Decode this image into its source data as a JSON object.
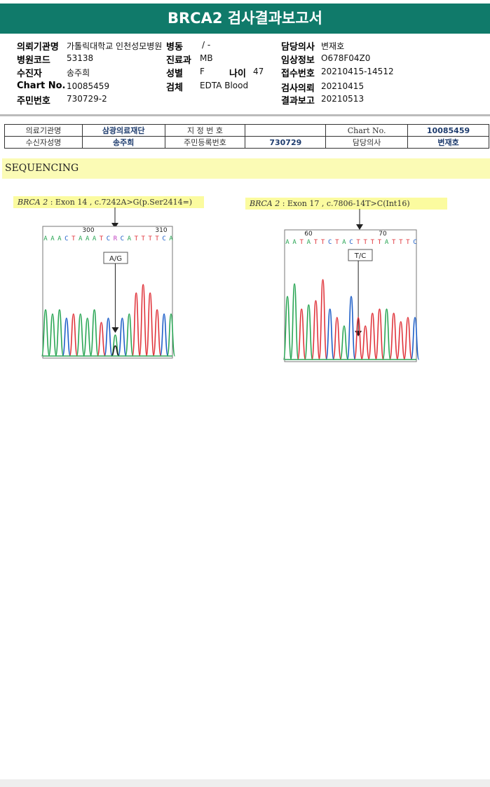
{
  "title": "BRCA2 검사결과보고서",
  "info": {
    "rows": [
      [
        {
          "k": "의뢰기관명",
          "v": "가톨릭대학교 인천성모병원"
        },
        {
          "k": "병동",
          "v": "/ -"
        },
        {
          "k": "담당의사",
          "v": "변재호"
        }
      ],
      [
        {
          "k": "병원코드",
          "v": "53138"
        },
        {
          "k": "진료과",
          "v": "MB"
        },
        {
          "k": "임상정보",
          "v": "O678F04Z0"
        }
      ],
      [
        {
          "k": "수진자",
          "v": "송주희"
        },
        {
          "k": "성별",
          "v": "F"
        },
        {
          "k": "나이",
          "v": "47"
        },
        {
          "k": "접수번호",
          "v": "20210415-14512"
        }
      ],
      [
        {
          "k": "Chart No.",
          "v": "10085459"
        },
        {
          "k": "검체",
          "v": "EDTA Blood"
        },
        {
          "k": "검사의뢰",
          "v": "20210415"
        }
      ],
      [
        {
          "k": "주민번호",
          "v": "730729-2"
        },
        {
          "k": "결과보고",
          "v": "20210513"
        }
      ]
    ]
  },
  "institution": {
    "r1": [
      "의료기관명",
      "삼광의료재단",
      "지 정 번 호",
      "",
      "Chart No.",
      "10085459"
    ],
    "r2": [
      "수신자성명",
      "송주희",
      "주민등록번호",
      "730729",
      "담당의사",
      "변재호"
    ]
  },
  "section": "SEQUENCING",
  "mutations": [
    {
      "gene": "BRCA 2",
      "rest": " : Exon 14 , c.7242A>G(p.Ser2414=)",
      "ticks": [
        "300",
        "310"
      ],
      "seq": "AAACTAAATCRCATTTTCA",
      "call": "A/G"
    },
    {
      "gene": "BRCA 2",
      "rest": " : Exon 17 , c.7806-14T>C(Int16)",
      "ticks": [
        "60",
        "70"
      ],
      "seq": "AATATTCTACTTTTATTTC",
      "call": "T/C"
    }
  ],
  "colors": {
    "A": "#2aa655",
    "C": "#1e5fc8",
    "G": "#222222",
    "T": "#e0343b",
    "R": "#c040c0"
  }
}
